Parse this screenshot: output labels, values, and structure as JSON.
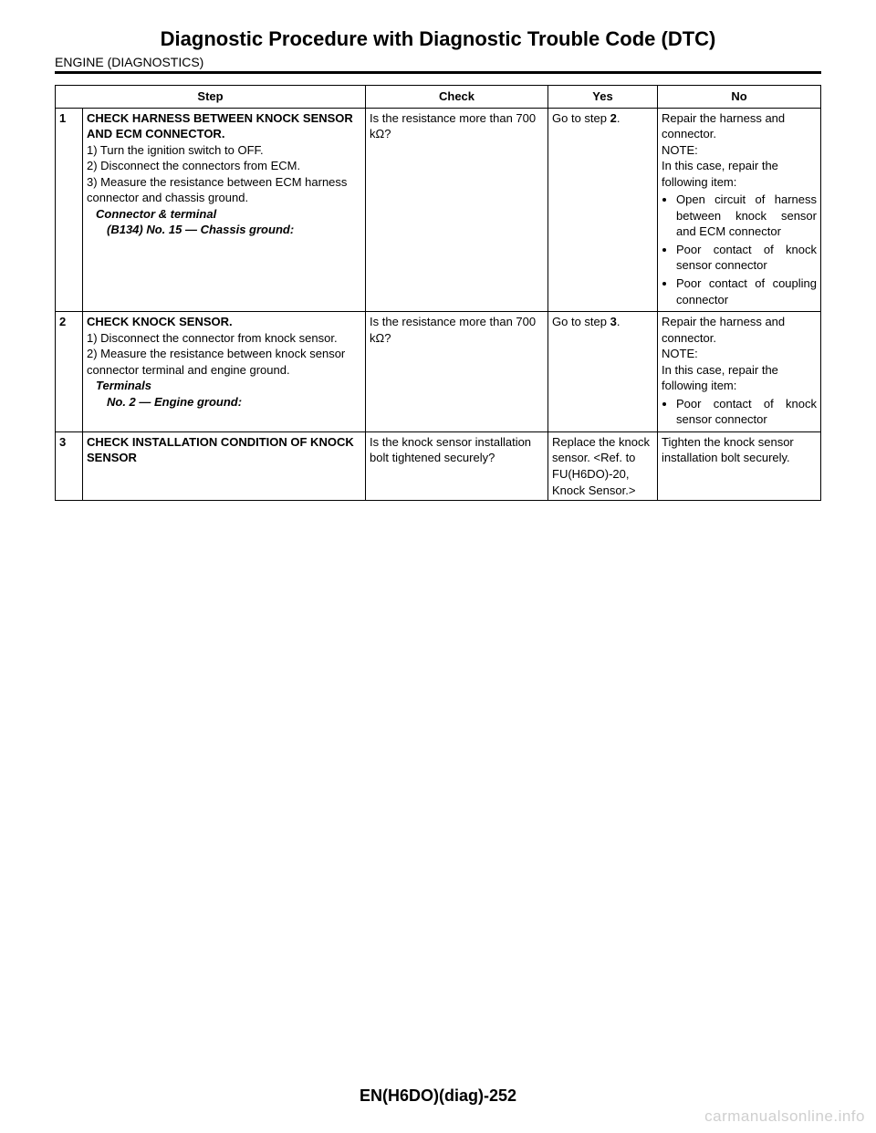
{
  "header": {
    "title": "Diagnostic Procedure with Diagnostic Trouble Code (DTC)",
    "subtitle": "ENGINE (DIAGNOSTICS)"
  },
  "table": {
    "headers": {
      "step": "Step",
      "check": "Check",
      "yes": "Yes",
      "no": "No"
    },
    "rows": [
      {
        "num": "1",
        "step_title": "CHECK HARNESS BETWEEN KNOCK SENSOR AND ECM CONNECTOR.",
        "step_lines": [
          "1)  Turn the ignition switch to OFF.",
          "2)  Disconnect the connectors from ECM.",
          "3)  Measure the resistance between ECM harness connector and chassis ground."
        ],
        "conn_label": "Connector & terminal",
        "conn_value": "(B134) No. 15 — Chassis ground:",
        "check": "Is the resistance more than 700 kΩ?",
        "yes_pre": "Go to step ",
        "yes_bold": "2",
        "yes_post": ".",
        "no_intro": "Repair the harness and connector.",
        "no_note_label": "NOTE:",
        "no_note_text": "In this case, repair the following item:",
        "no_items": [
          "Open circuit of harness between knock sensor and ECM connector",
          "Poor contact of knock sensor connector",
          "Poor contact of coupling connector"
        ]
      },
      {
        "num": "2",
        "step_title": "CHECK KNOCK SENSOR.",
        "step_lines": [
          "1)  Disconnect the connector from knock sensor.",
          "2)  Measure the resistance between knock sensor connector terminal and engine ground."
        ],
        "conn_label": "Terminals",
        "conn_value": "No. 2 — Engine ground:",
        "check": "Is the resistance more than 700 kΩ?",
        "yes_pre": "Go to step ",
        "yes_bold": "3",
        "yes_post": ".",
        "no_intro": "Repair the harness and connector.",
        "no_note_label": "NOTE:",
        "no_note_text": "In this case, repair the following item:",
        "no_items": [
          "Poor contact of knock sensor connector"
        ]
      },
      {
        "num": "3",
        "step_title": "CHECK INSTALLATION CONDITION OF KNOCK SENSOR",
        "step_lines": [],
        "conn_label": "",
        "conn_value": "",
        "check": "Is the knock sensor installation bolt tightened securely?",
        "yes_full": "Replace the knock sensor. <Ref. to FU(H6DO)-20, Knock Sensor.>",
        "no_full": "Tighten the knock sensor installation bolt securely."
      }
    ]
  },
  "footer": {
    "page_id": "EN(H6DO)(diag)-252",
    "watermark": "carmanualsonline.info"
  }
}
